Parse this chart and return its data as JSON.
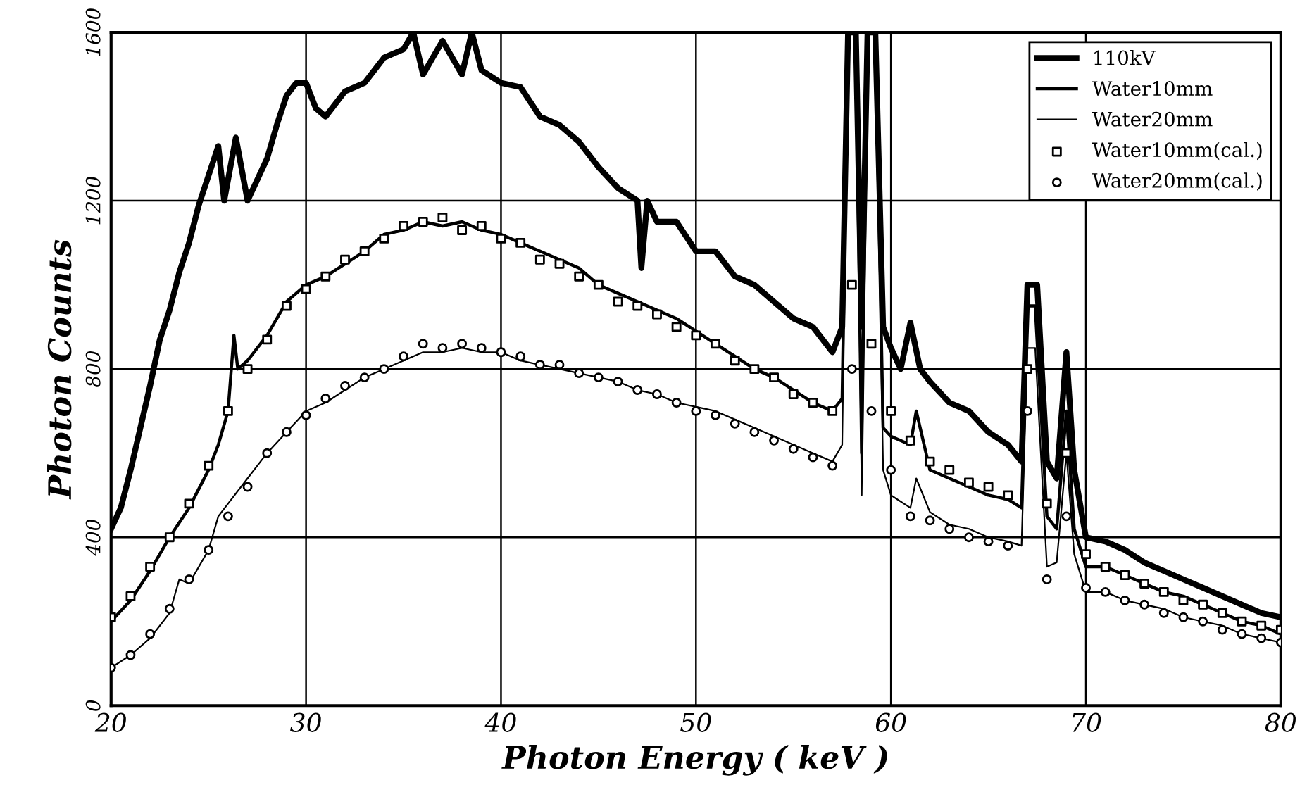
{
  "chart_data": {
    "type": "line",
    "xlabel": "Photon Energy ( keV )",
    "ylabel": "Photon Counts",
    "xlim": [
      20,
      80
    ],
    "xticks": [
      20,
      30,
      40,
      50,
      60,
      70,
      80
    ],
    "ylim": [
      0,
      1600
    ],
    "yticks": [
      0,
      400,
      800,
      1200,
      1600
    ],
    "grid": true,
    "legend": "top right",
    "line_style": "solid",
    "series": [
      {
        "name": "110kV",
        "color": "#000000",
        "marker": "none",
        "x": [
          20,
          20.5,
          21,
          21.5,
          22,
          22.5,
          23,
          23.5,
          24,
          24.5,
          25,
          25.5,
          25.8,
          26.4,
          27,
          28,
          28.5,
          29,
          29.5,
          30,
          30.5,
          31,
          32,
          33,
          34,
          35,
          35.5,
          36,
          37,
          38,
          38.5,
          39,
          40,
          41,
          42,
          43,
          44,
          45,
          46,
          47,
          47.2,
          47.5,
          48,
          49,
          50,
          51,
          52,
          53,
          54,
          55,
          56,
          57,
          57.5,
          57.8,
          58.2,
          58.5,
          58.8,
          59.2,
          59.6,
          60,
          60.5,
          61,
          61.5,
          62,
          63,
          64,
          65,
          66,
          66.7,
          67,
          67.5,
          68,
          68.5,
          69,
          69.4,
          70,
          71,
          72,
          73,
          74,
          75,
          76,
          77,
          78,
          79,
          80
        ],
        "values": [
          420,
          470,
          560,
          660,
          760,
          870,
          940,
          1030,
          1100,
          1190,
          1260,
          1330,
          1200,
          1350,
          1200,
          1300,
          1380,
          1450,
          1480,
          1480,
          1420,
          1400,
          1460,
          1480,
          1540,
          1560,
          1600,
          1500,
          1580,
          1500,
          1600,
          1510,
          1480,
          1470,
          1400,
          1380,
          1340,
          1280,
          1230,
          1200,
          1040,
          1200,
          1150,
          1150,
          1080,
          1080,
          1020,
          1000,
          960,
          920,
          900,
          840,
          900,
          1600,
          1600,
          900,
          1600,
          1600,
          900,
          850,
          800,
          910,
          800,
          770,
          720,
          700,
          650,
          620,
          580,
          1000,
          1000,
          580,
          540,
          840,
          560,
          400,
          390,
          370,
          340,
          320,
          300,
          280,
          260,
          240,
          220,
          210
        ]
      },
      {
        "name": "Water10mm",
        "color": "#000000",
        "marker": "none",
        "x": [
          20,
          21,
          22,
          23,
          24,
          25,
          25.5,
          26,
          26.3,
          26.5,
          27,
          28,
          29,
          30,
          31,
          32,
          33,
          34,
          35,
          36,
          37,
          38,
          39,
          40,
          41,
          42,
          43,
          44,
          45,
          46,
          47,
          48,
          49,
          50,
          51,
          52,
          53,
          54,
          55,
          56,
          57,
          57.5,
          57.8,
          58.2,
          58.5,
          58.8,
          59.2,
          59.6,
          60,
          61,
          61.3,
          62,
          63,
          64,
          65,
          66,
          66.7,
          67,
          67.4,
          68,
          68.5,
          69,
          69.4,
          70,
          71,
          72,
          73,
          74,
          75,
          76,
          77,
          78,
          79,
          80
        ],
        "values": [
          200,
          250,
          320,
          400,
          470,
          560,
          620,
          700,
          880,
          800,
          820,
          880,
          960,
          1000,
          1020,
          1050,
          1080,
          1120,
          1130,
          1150,
          1140,
          1150,
          1130,
          1120,
          1100,
          1080,
          1060,
          1040,
          1000,
          980,
          960,
          940,
          920,
          890,
          860,
          830,
          800,
          780,
          750,
          720,
          700,
          730,
          1600,
          1600,
          600,
          1600,
          1600,
          660,
          640,
          620,
          700,
          560,
          540,
          520,
          500,
          490,
          470,
          950,
          950,
          450,
          420,
          700,
          420,
          330,
          330,
          310,
          290,
          270,
          260,
          240,
          220,
          200,
          190,
          170
        ]
      },
      {
        "name": "Water20mm",
        "color": "#000000",
        "marker": "none",
        "x": [
          20,
          21,
          22,
          23,
          23.5,
          24,
          25,
          25.5,
          26,
          27,
          28,
          29,
          30,
          31,
          32,
          33,
          34,
          35,
          36,
          37,
          38,
          39,
          40,
          41,
          42,
          43,
          44,
          45,
          46,
          47,
          48,
          49,
          50,
          51,
          52,
          53,
          54,
          55,
          56,
          57,
          57.5,
          57.8,
          58.2,
          58.5,
          58.8,
          59.2,
          59.6,
          60,
          61,
          61.3,
          62,
          63,
          64,
          65,
          66,
          66.7,
          67,
          67.4,
          68,
          68.5,
          69,
          69.4,
          70,
          71,
          72,
          73,
          74,
          75,
          76,
          77,
          78,
          79,
          80
        ],
        "values": [
          90,
          120,
          160,
          220,
          300,
          290,
          370,
          450,
          480,
          540,
          600,
          650,
          700,
          720,
          750,
          780,
          800,
          820,
          840,
          840,
          850,
          840,
          840,
          820,
          810,
          800,
          790,
          780,
          770,
          750,
          740,
          720,
          710,
          700,
          680,
          660,
          640,
          620,
          600,
          580,
          620,
          1600,
          1600,
          500,
          1600,
          1600,
          560,
          500,
          470,
          540,
          460,
          430,
          420,
          400,
          390,
          380,
          850,
          850,
          330,
          340,
          600,
          360,
          270,
          270,
          250,
          240,
          230,
          210,
          200,
          190,
          170,
          160,
          150
        ]
      },
      {
        "name": "Water10mm(cal.)",
        "type": "scatter",
        "color": "#000000",
        "marker": "square",
        "x": [
          20,
          21,
          22,
          23,
          24,
          25,
          26,
          27,
          28,
          29,
          30,
          31,
          32,
          33,
          34,
          35,
          36,
          37,
          38,
          39,
          40,
          41,
          42,
          43,
          44,
          45,
          46,
          47,
          48,
          49,
          50,
          51,
          52,
          53,
          54,
          55,
          56,
          57,
          58,
          59,
          60,
          61,
          62,
          63,
          64,
          65,
          66,
          67,
          68,
          69,
          70,
          71,
          72,
          73,
          74,
          75,
          76,
          77,
          78,
          79,
          80
        ],
        "values": [
          210,
          260,
          330,
          400,
          480,
          570,
          700,
          800,
          870,
          950,
          990,
          1020,
          1060,
          1080,
          1110,
          1140,
          1150,
          1160,
          1130,
          1140,
          1110,
          1100,
          1060,
          1050,
          1020,
          1000,
          960,
          950,
          930,
          900,
          880,
          860,
          820,
          800,
          780,
          740,
          720,
          700,
          1000,
          860,
          700,
          630,
          580,
          560,
          530,
          520,
          500,
          800,
          480,
          600,
          360,
          330,
          310,
          290,
          270,
          250,
          240,
          220,
          200,
          190,
          180
        ]
      },
      {
        "name": "Water20mm(cal.)",
        "type": "scatter",
        "color": "#000000",
        "marker": "circle",
        "x": [
          20,
          21,
          22,
          23,
          24,
          25,
          26,
          27,
          28,
          29,
          30,
          31,
          32,
          33,
          34,
          35,
          36,
          37,
          38,
          39,
          40,
          41,
          42,
          43,
          44,
          45,
          46,
          47,
          48,
          49,
          50,
          51,
          52,
          53,
          54,
          55,
          56,
          57,
          58,
          59,
          60,
          61,
          62,
          63,
          64,
          65,
          66,
          67,
          68,
          69,
          70,
          71,
          72,
          73,
          74,
          75,
          76,
          77,
          78,
          79,
          80
        ],
        "values": [
          90,
          120,
          170,
          230,
          300,
          370,
          450,
          520,
          600,
          650,
          690,
          730,
          760,
          780,
          800,
          830,
          860,
          850,
          860,
          850,
          840,
          830,
          810,
          810,
          790,
          780,
          770,
          750,
          740,
          720,
          700,
          690,
          670,
          650,
          630,
          610,
          590,
          570,
          800,
          700,
          560,
          450,
          440,
          420,
          400,
          390,
          380,
          700,
          300,
          450,
          280,
          270,
          250,
          240,
          220,
          210,
          200,
          180,
          170,
          160,
          150
        ]
      }
    ]
  }
}
